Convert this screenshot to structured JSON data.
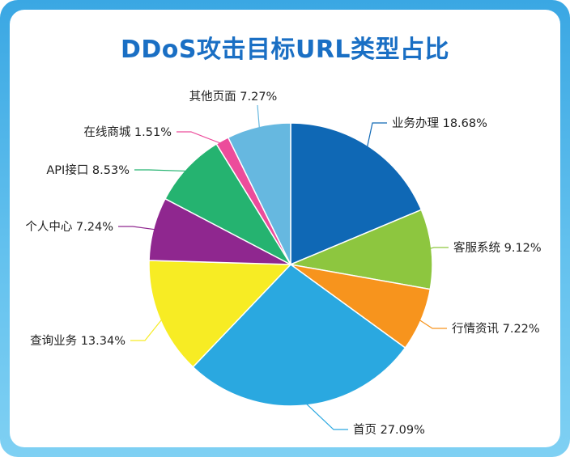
{
  "chart_data": {
    "type": "pie",
    "title": "DDoS攻击目标URL类型占比",
    "start_angle_deg": 0,
    "direction": "clockwise",
    "slices": [
      {
        "label": "业务办理 18.68%",
        "name": "业务办理",
        "value": 18.68,
        "color": "#0f68b5"
      },
      {
        "label": "客服系统 9.12%",
        "name": "客服系统",
        "value": 9.12,
        "color": "#8dc63f"
      },
      {
        "label": "行情资讯 7.22%",
        "name": "行情资讯",
        "value": 7.22,
        "color": "#f7941d"
      },
      {
        "label": "首页 27.09%",
        "name": "首页",
        "value": 27.09,
        "color": "#2aa8e0"
      },
      {
        "label": "查询业务 13.34%",
        "name": "查询业务",
        "value": 13.34,
        "color": "#f7ec24"
      },
      {
        "label": "个人中心 7.24%",
        "name": "个人中心",
        "value": 7.24,
        "color": "#8f278f"
      },
      {
        "label": "API接口 8.53%",
        "name": "API接口",
        "value": 8.53,
        "color": "#25b370"
      },
      {
        "label": "在线商城 1.51%",
        "name": "在线商城",
        "value": 1.51,
        "color": "#ec4c9b"
      },
      {
        "label": "其他页面 7.27%",
        "name": "其他页面",
        "value": 7.27,
        "color": "#66b8e0"
      }
    ]
  }
}
